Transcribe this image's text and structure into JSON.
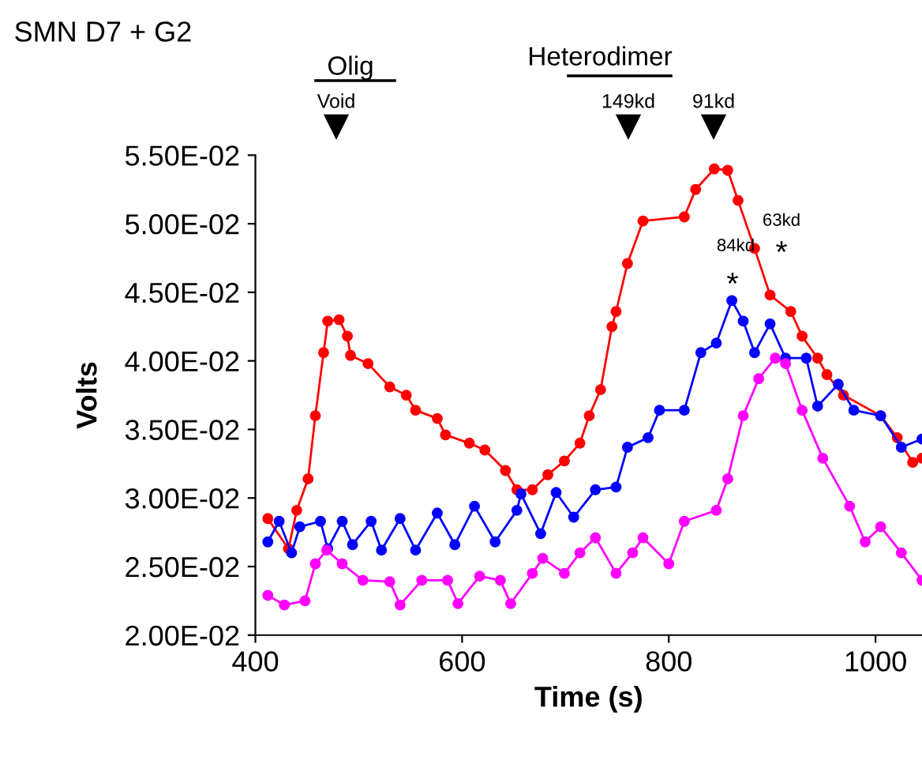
{
  "chart_data": {
    "type": "line",
    "title": "SMN D7 + G2",
    "xlabel": "Time (s)",
    "ylabel": "Volts",
    "xlim": [
      400,
      1045
    ],
    "xticks": [
      400,
      600,
      800,
      1000
    ],
    "ylim": [
      0.02,
      0.055
    ],
    "yticks": [
      {
        "value": 0.02,
        "label": "2.00E-02"
      },
      {
        "value": 0.025,
        "label": "2.50E-02"
      },
      {
        "value": 0.03,
        "label": "3.00E-02"
      },
      {
        "value": 0.035,
        "label": "3.50E-02"
      },
      {
        "value": 0.04,
        "label": "4.00E-02"
      },
      {
        "value": 0.045,
        "label": "4.50E-02"
      },
      {
        "value": 0.05,
        "label": "5.00E-02"
      },
      {
        "value": 0.055,
        "label": "5.50E-02"
      }
    ],
    "marker": "circle",
    "line_style": "solid",
    "grid": false,
    "legend": false,
    "series": [
      {
        "color": "#ff0000",
        "x": [
          412,
          432,
          440,
          451,
          458,
          466,
          470,
          481,
          489,
          492,
          509,
          530,
          546,
          555,
          576,
          584,
          607,
          622,
          642,
          653,
          668,
          683,
          699,
          714,
          723,
          734,
          745,
          749,
          760,
          775,
          815,
          826,
          844,
          857,
          867,
          883,
          898,
          918,
          929,
          944,
          953,
          969,
          1005,
          1021,
          1036,
          1045
        ],
        "values": [
          0.0285,
          0.0263,
          0.0291,
          0.0314,
          0.036,
          0.0406,
          0.0429,
          0.043,
          0.0418,
          0.0404,
          0.0398,
          0.0381,
          0.0375,
          0.0364,
          0.0358,
          0.0346,
          0.034,
          0.0335,
          0.032,
          0.0306,
          0.0306,
          0.0317,
          0.0327,
          0.034,
          0.036,
          0.0379,
          0.0425,
          0.0436,
          0.0471,
          0.0502,
          0.0505,
          0.0525,
          0.054,
          0.0539,
          0.0517,
          0.0482,
          0.0448,
          0.0436,
          0.0418,
          0.0402,
          0.039,
          0.0375,
          0.036,
          0.0344,
          0.0326,
          0.0329
        ]
      },
      {
        "color": "#0000ff",
        "x": [
          412,
          423,
          435,
          443,
          463,
          470,
          484,
          494,
          512,
          522,
          540,
          555,
          576,
          593,
          612,
          632,
          653,
          657,
          676,
          691,
          708,
          729,
          749,
          760,
          780,
          791,
          815,
          831,
          846,
          861,
          872,
          883,
          898,
          913,
          933,
          944,
          964,
          979,
          1005,
          1025,
          1045
        ],
        "values": [
          0.0268,
          0.0283,
          0.026,
          0.0279,
          0.0283,
          0.0263,
          0.0283,
          0.0266,
          0.0283,
          0.0262,
          0.0285,
          0.0262,
          0.0289,
          0.0266,
          0.0294,
          0.0268,
          0.0291,
          0.0303,
          0.0274,
          0.0304,
          0.0286,
          0.0306,
          0.0308,
          0.0337,
          0.0344,
          0.0364,
          0.0364,
          0.0406,
          0.0413,
          0.0444,
          0.0429,
          0.0406,
          0.0427,
          0.0402,
          0.0402,
          0.0367,
          0.0383,
          0.0364,
          0.036,
          0.0337,
          0.0343
        ]
      },
      {
        "color": "#ff00ff",
        "x": [
          412,
          428,
          448,
          458,
          469,
          484,
          504,
          530,
          540,
          561,
          586,
          596,
          617,
          637,
          647,
          668,
          678,
          699,
          714,
          729,
          749,
          765,
          775,
          800,
          815,
          846,
          857,
          872,
          887,
          903,
          913,
          929,
          949,
          975,
          990,
          1005,
          1025,
          1045
        ],
        "values": [
          0.0229,
          0.0222,
          0.0225,
          0.0252,
          0.0262,
          0.0252,
          0.024,
          0.0239,
          0.0222,
          0.024,
          0.024,
          0.0223,
          0.0243,
          0.024,
          0.0223,
          0.0245,
          0.0256,
          0.0245,
          0.026,
          0.0271,
          0.0245,
          0.026,
          0.0271,
          0.0252,
          0.0283,
          0.0291,
          0.0314,
          0.036,
          0.0387,
          0.0402,
          0.0398,
          0.0364,
          0.0329,
          0.0294,
          0.0268,
          0.0279,
          0.026,
          0.024
        ]
      }
    ],
    "annotations": [
      "Olig",
      "Heterodimer",
      "Void",
      "149kd",
      "91kd",
      "84kd",
      "*",
      "63kd",
      "*"
    ]
  }
}
